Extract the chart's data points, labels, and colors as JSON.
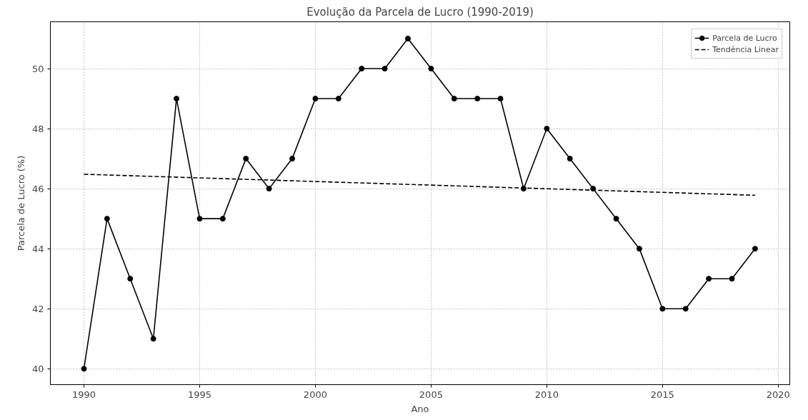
{
  "chart_data": {
    "type": "line",
    "title": "Evolução da Parcela de Lucro (1990-2019)",
    "xlabel": "Ano",
    "ylabel": "Parcela de Lucro (%)",
    "xlim": [
      1988.55,
      2020.5
    ],
    "ylim": [
      39.47,
      51.56
    ],
    "xticks": [
      1990,
      1995,
      2000,
      2005,
      2010,
      2015,
      2020
    ],
    "yticks": [
      40,
      42,
      44,
      46,
      48,
      50
    ],
    "grid": true,
    "legend": "top right",
    "series": [
      {
        "name": "Parcela de Lucro",
        "color": "#000000",
        "marker": "circle",
        "line_style": "solid",
        "x": [
          1990,
          1991,
          1992,
          1993,
          1994,
          1995,
          1996,
          1997,
          1998,
          1999,
          2000,
          2001,
          2002,
          2003,
          2004,
          2005,
          2006,
          2007,
          2008,
          2009,
          2010,
          2011,
          2012,
          2013,
          2014,
          2015,
          2016,
          2017,
          2018,
          2019
        ],
        "values": [
          40,
          45,
          43,
          41,
          49,
          45,
          45,
          47,
          46,
          47,
          49,
          49,
          50,
          50,
          51,
          50,
          49,
          49,
          49,
          46,
          48,
          47,
          46,
          45,
          44,
          42,
          42,
          43,
          43,
          44
        ]
      },
      {
        "name": "Tendência Linear",
        "color": "#000000",
        "marker": "none",
        "line_style": "dashed",
        "x": [
          1990,
          2019
        ],
        "values": [
          46.48,
          45.78
        ]
      }
    ]
  }
}
